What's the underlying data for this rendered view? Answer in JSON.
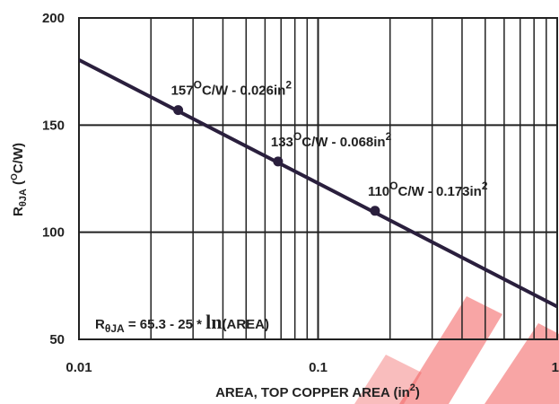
{
  "chart_data": {
    "type": "line",
    "x_scale": "log",
    "xlim": [
      0.01,
      1
    ],
    "ylim": [
      50,
      200
    ],
    "grid": true,
    "x_ticks": [
      "0.01",
      "0.1",
      "1"
    ],
    "y_ticks": [
      "200",
      "150",
      "100",
      "50"
    ],
    "xlabel": {
      "text": "AREA, TOP COPPER AREA (in",
      "sup": "2",
      "close": ")"
    },
    "ylabel": {
      "prefix": "R",
      "sub": "θJA",
      "mid": " (",
      "sup": "O",
      "suffix": "C/W)"
    },
    "equation": {
      "prefix": "R",
      "sub": "θJA",
      "text": " = 65.3 - 25 * ",
      "fn": "ln",
      "arg": "(AREA)",
      "intercept": 65.3,
      "slope": -25
    },
    "line_color": "#2a1f3d",
    "series": [
      {
        "x": [
          0.01,
          1
        ],
        "y": [
          180.4,
          65.3
        ]
      }
    ],
    "points": [
      {
        "x": 0.026,
        "y": 157,
        "label_value": "157",
        "label_unit": "C/W - 0.026in",
        "deg": "O",
        "sup": "2"
      },
      {
        "x": 0.068,
        "y": 133,
        "label_value": "133",
        "label_unit": "C/W - 0.068in",
        "deg": "O",
        "sup": "2"
      },
      {
        "x": 0.173,
        "y": 110,
        "label_value": "110",
        "label_unit": "C/W - 0.173in",
        "deg": "O",
        "sup": "2"
      }
    ]
  }
}
